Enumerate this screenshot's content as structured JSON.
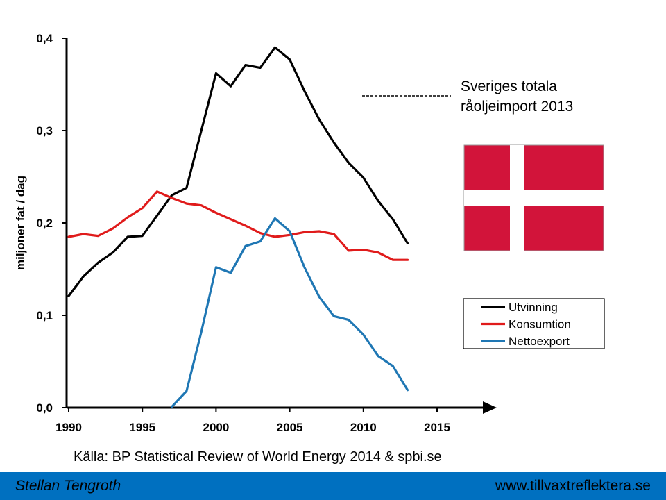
{
  "chart_data": {
    "type": "line",
    "ylabel": "miljoner fat / dag",
    "xlim": [
      1990,
      2015
    ],
    "ylim": [
      0,
      0.4
    ],
    "x_ticks": [
      "1990",
      "1995",
      "2000",
      "2005",
      "2010",
      "2015"
    ],
    "y_ticks": [
      "0,0",
      "0,1",
      "0,2",
      "0,3",
      "0,4"
    ],
    "grid": false,
    "legend_position": "right",
    "series": [
      {
        "name": "Utvinning",
        "color": "#000000",
        "x": [
          1990,
          1991,
          1992,
          1993,
          1994,
          1995,
          1996,
          1997,
          1998,
          1999,
          2000,
          2001,
          2002,
          2003,
          2004,
          2005,
          2006,
          2007,
          2008,
          2009,
          2010,
          2011,
          2012,
          2013
        ],
        "y": [
          0.121,
          0.142,
          0.157,
          0.168,
          0.185,
          0.186,
          0.208,
          0.23,
          0.238,
          0.3,
          0.362,
          0.348,
          0.371,
          0.368,
          0.39,
          0.377,
          0.343,
          0.312,
          0.287,
          0.265,
          0.249,
          0.224,
          0.204,
          0.178
        ]
      },
      {
        "name": "Konsumtion",
        "color": "#e01b1b",
        "x": [
          1990,
          1991,
          1992,
          1993,
          1994,
          1995,
          1996,
          1997,
          1998,
          1999,
          2000,
          2001,
          2002,
          2003,
          2004,
          2005,
          2006,
          2007,
          2008,
          2009,
          2010,
          2011,
          2012,
          2013
        ],
        "y": [
          0.185,
          0.188,
          0.186,
          0.194,
          0.206,
          0.216,
          0.234,
          0.227,
          0.221,
          0.219,
          0.211,
          0.204,
          0.197,
          0.189,
          0.185,
          0.187,
          0.19,
          0.191,
          0.188,
          0.17,
          0.171,
          0.168,
          0.16,
          0.16
        ]
      },
      {
        "name": "Nettoexport",
        "color": "#1f77b4",
        "x": [
          1997,
          1998,
          1999,
          2000,
          2001,
          2002,
          2003,
          2004,
          2005,
          2006,
          2007,
          2008,
          2009,
          2010,
          2011,
          2012,
          2013
        ],
        "y": [
          0.001,
          0.018,
          0.082,
          0.152,
          0.146,
          0.175,
          0.18,
          0.205,
          0.191,
          0.152,
          0.12,
          0.099,
          0.095,
          0.079,
          0.056,
          0.045,
          0.019
        ]
      }
    ]
  },
  "annotation": {
    "line1": "Sveriges totala",
    "line2": "råoljeimport 2013"
  },
  "flag": {
    "field_color": "#d2143a",
    "cross_color": "#ffffff"
  },
  "source": "Källa: BP Statistical Review of World Energy 2014 & spbi.se",
  "footer": {
    "author": "Stellan Tengroth",
    "website": "www.tillvaxtreflektera.se"
  }
}
